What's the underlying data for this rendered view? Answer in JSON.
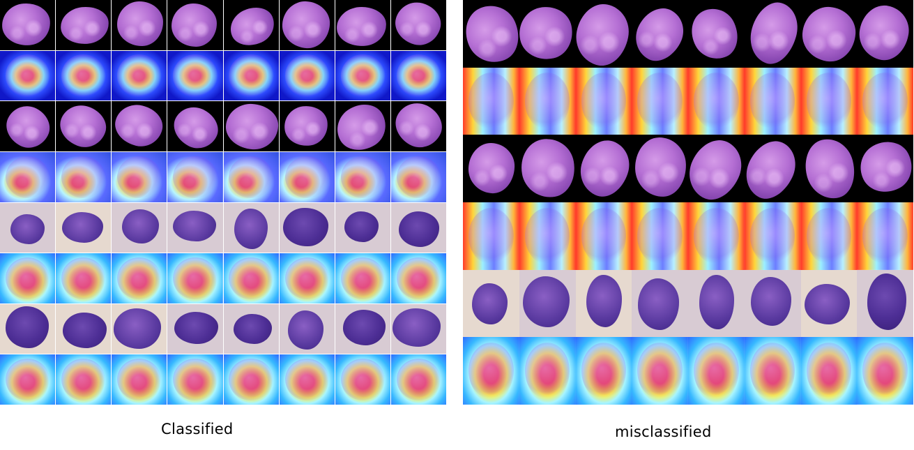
{
  "captions": {
    "left": "Classified",
    "right": "misclassified"
  },
  "panels": {
    "left": {
      "rows": 8,
      "cols": 8
    },
    "right": {
      "rows": 6,
      "cols": 8
    }
  }
}
